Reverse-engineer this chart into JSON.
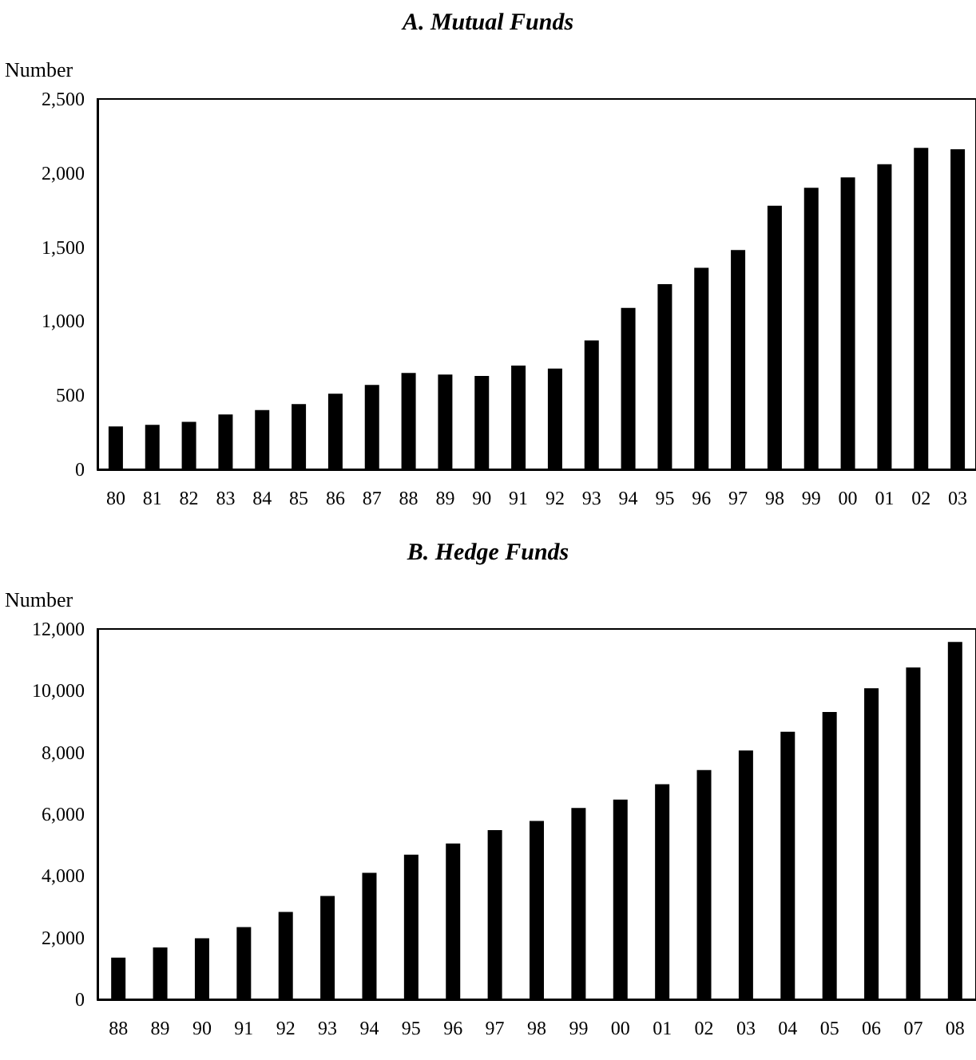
{
  "chart_data": [
    {
      "type": "bar",
      "title": "A. Mutual Funds",
      "ylabel": "Number",
      "categories": [
        "80",
        "81",
        "82",
        "83",
        "84",
        "85",
        "86",
        "87",
        "88",
        "89",
        "90",
        "91",
        "92",
        "93",
        "94",
        "95",
        "96",
        "97",
        "98",
        "99",
        "00",
        "01",
        "02",
        "03"
      ],
      "values": [
        290,
        300,
        320,
        370,
        400,
        440,
        510,
        570,
        650,
        640,
        630,
        700,
        680,
        870,
        1090,
        1250,
        1360,
        1480,
        1780,
        1900,
        1970,
        2060,
        2170,
        2160
      ],
      "color": "#000000",
      "ylim": [
        0,
        2500
      ],
      "yticks": [
        0,
        {
          "value": 500,
          "label": "500"
        },
        {
          "value": 1000,
          "label": "1,000"
        },
        {
          "value": 1500,
          "label": "1,500"
        },
        {
          "value": 2000,
          "label": "2,000"
        },
        {
          "value": 2500,
          "label": "2,500"
        }
      ],
      "grid": false
    },
    {
      "type": "bar",
      "title": "B. Hedge Funds",
      "ylabel": "Number",
      "categories": [
        "88",
        "89",
        "90",
        "91",
        "92",
        "93",
        "94",
        "95",
        "96",
        "97",
        "98",
        "99",
        "00",
        "01",
        "02",
        "03",
        "04",
        "05",
        "06",
        "07",
        "08"
      ],
      "values": [
        1350,
        1680,
        1980,
        2340,
        2830,
        3350,
        4100,
        4690,
        5050,
        5480,
        5780,
        6200,
        6470,
        6970,
        7430,
        8060,
        8670,
        9310,
        10080,
        10750,
        11580
      ],
      "color": "#000000",
      "ylim": [
        0,
        12000
      ],
      "yticks": [
        0,
        {
          "value": 2000,
          "label": "2,000"
        },
        {
          "value": 4000,
          "label": "4,000"
        },
        {
          "value": 6000,
          "label": "6,000"
        },
        {
          "value": 8000,
          "label": "8,000"
        },
        {
          "value": 10000,
          "label": "10,000"
        },
        {
          "value": 12000,
          "label": "12,000"
        }
      ],
      "grid": false
    }
  ]
}
